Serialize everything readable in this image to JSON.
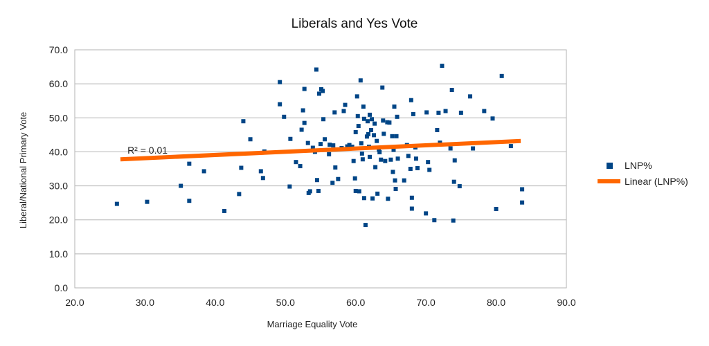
{
  "chart_data": {
    "type": "scatter",
    "title": "Liberals and Yes Vote",
    "xlabel": "Marriage Equality Vote",
    "ylabel": "Liberal/National Primary Vote",
    "xlim": [
      20,
      90
    ],
    "ylim": [
      0,
      70
    ],
    "x_ticks": [
      "20.0",
      "30.0",
      "40.0",
      "50.0",
      "60.0",
      "70.0",
      "80.0",
      "90.0"
    ],
    "y_ticks": [
      "0.0",
      "10.0",
      "20.0",
      "30.0",
      "40.0",
      "50.0",
      "60.0",
      "70.0"
    ],
    "grid": "horizontal",
    "legend_position": "right",
    "series": [
      {
        "name": "LNP%",
        "color": "#004586",
        "marker": "square",
        "points": [
          [
            26.0,
            24.7
          ],
          [
            30.3,
            25.3
          ],
          [
            35.1,
            30.0
          ],
          [
            36.3,
            36.5
          ],
          [
            36.3,
            25.6
          ],
          [
            38.4,
            34.3
          ],
          [
            41.3,
            22.6
          ],
          [
            43.4,
            27.6
          ],
          [
            43.7,
            35.3
          ],
          [
            44.0,
            49.0
          ],
          [
            45.0,
            43.7
          ],
          [
            46.5,
            34.3
          ],
          [
            46.8,
            32.3
          ],
          [
            47.0,
            40.1
          ],
          [
            49.2,
            60.5
          ],
          [
            49.2,
            54.0
          ],
          [
            49.8,
            50.3
          ],
          [
            50.6,
            29.8
          ],
          [
            50.7,
            43.8
          ],
          [
            51.5,
            37.0
          ],
          [
            52.1,
            35.8
          ],
          [
            52.3,
            46.5
          ],
          [
            52.5,
            52.2
          ],
          [
            52.7,
            58.5
          ],
          [
            52.7,
            48.5
          ],
          [
            53.2,
            42.6
          ],
          [
            53.3,
            27.9
          ],
          [
            53.5,
            28.4
          ],
          [
            53.9,
            41.2
          ],
          [
            54.2,
            40.0
          ],
          [
            54.4,
            64.2
          ],
          [
            54.5,
            31.7
          ],
          [
            54.7,
            28.5
          ],
          [
            54.8,
            57.1
          ],
          [
            55.0,
            42.3
          ],
          [
            55.1,
            58.4
          ],
          [
            55.3,
            57.9
          ],
          [
            55.4,
            49.6
          ],
          [
            55.6,
            43.7
          ],
          [
            56.2,
            39.3
          ],
          [
            56.3,
            42.1
          ],
          [
            56.7,
            30.9
          ],
          [
            56.8,
            41.9
          ],
          [
            57.0,
            51.6
          ],
          [
            57.1,
            35.4
          ],
          [
            57.5,
            32.0
          ],
          [
            58.0,
            41.1
          ],
          [
            58.3,
            52.0
          ],
          [
            58.5,
            53.8
          ],
          [
            58.8,
            41.6
          ],
          [
            59.1,
            42.0
          ],
          [
            59.5,
            41.5
          ],
          [
            59.7,
            37.3
          ],
          [
            59.9,
            32.2
          ],
          [
            60.0,
            45.8
          ],
          [
            60.0,
            28.5
          ],
          [
            60.2,
            56.3
          ],
          [
            60.3,
            50.5
          ],
          [
            60.4,
            47.6
          ],
          [
            60.5,
            28.4
          ],
          [
            60.7,
            61.0
          ],
          [
            60.8,
            42.5
          ],
          [
            60.9,
            39.5
          ],
          [
            61.0,
            37.8
          ],
          [
            61.1,
            53.3
          ],
          [
            61.2,
            49.7
          ],
          [
            61.2,
            26.4
          ],
          [
            61.4,
            18.5
          ],
          [
            61.6,
            44.5
          ],
          [
            61.7,
            49.0
          ],
          [
            61.8,
            45.2
          ],
          [
            61.9,
            41.5
          ],
          [
            62.0,
            50.9
          ],
          [
            62.0,
            38.5
          ],
          [
            62.2,
            46.4
          ],
          [
            62.3,
            49.6
          ],
          [
            62.4,
            26.3
          ],
          [
            62.6,
            44.9
          ],
          [
            62.7,
            48.3
          ],
          [
            62.8,
            35.5
          ],
          [
            63.0,
            43.2
          ],
          [
            63.1,
            27.7
          ],
          [
            63.3,
            40.7
          ],
          [
            63.4,
            39.9
          ],
          [
            63.6,
            37.7
          ],
          [
            63.8,
            58.9
          ],
          [
            63.9,
            49.2
          ],
          [
            64.0,
            45.3
          ],
          [
            64.2,
            37.3
          ],
          [
            64.5,
            48.7
          ],
          [
            64.6,
            26.2
          ],
          [
            64.8,
            48.6
          ],
          [
            65.0,
            37.7
          ],
          [
            65.2,
            44.6
          ],
          [
            65.3,
            34.1
          ],
          [
            65.4,
            40.6
          ],
          [
            65.5,
            53.3
          ],
          [
            65.6,
            31.6
          ],
          [
            65.7,
            29.1
          ],
          [
            65.8,
            44.6
          ],
          [
            65.9,
            50.3
          ],
          [
            66.0,
            38.0
          ],
          [
            66.9,
            31.6
          ],
          [
            67.3,
            42.0
          ],
          [
            67.5,
            38.8
          ],
          [
            67.8,
            35.0
          ],
          [
            67.9,
            55.2
          ],
          [
            68.0,
            23.3
          ],
          [
            68.0,
            26.5
          ],
          [
            68.2,
            51.1
          ],
          [
            68.5,
            41.3
          ],
          [
            68.6,
            38.0
          ],
          [
            68.8,
            35.2
          ],
          [
            70.0,
            21.9
          ],
          [
            70.1,
            51.6
          ],
          [
            70.3,
            37.0
          ],
          [
            70.5,
            34.7
          ],
          [
            71.2,
            19.9
          ],
          [
            71.6,
            46.4
          ],
          [
            71.8,
            51.5
          ],
          [
            72.0,
            42.7
          ],
          [
            72.3,
            65.3
          ],
          [
            72.8,
            52.0
          ],
          [
            73.5,
            41.0
          ],
          [
            73.7,
            58.2
          ],
          [
            73.9,
            19.8
          ],
          [
            74.0,
            31.2
          ],
          [
            74.1,
            37.5
          ],
          [
            74.8,
            29.9
          ],
          [
            75.0,
            51.5
          ],
          [
            76.3,
            56.3
          ],
          [
            76.7,
            41.0
          ],
          [
            78.3,
            52.0
          ],
          [
            79.5,
            49.8
          ],
          [
            80.0,
            23.2
          ],
          [
            80.8,
            62.3
          ],
          [
            82.1,
            41.7
          ],
          [
            83.7,
            29.0
          ],
          [
            83.7,
            25.1
          ]
        ]
      }
    ],
    "trendline": {
      "name": "Linear (LNP%)",
      "color": "#ff6600",
      "type": "linear",
      "x_range": [
        26.5,
        83.5
      ],
      "y_range": [
        37.8,
        43.2
      ],
      "r_squared_label": "R² = 0.01"
    }
  }
}
